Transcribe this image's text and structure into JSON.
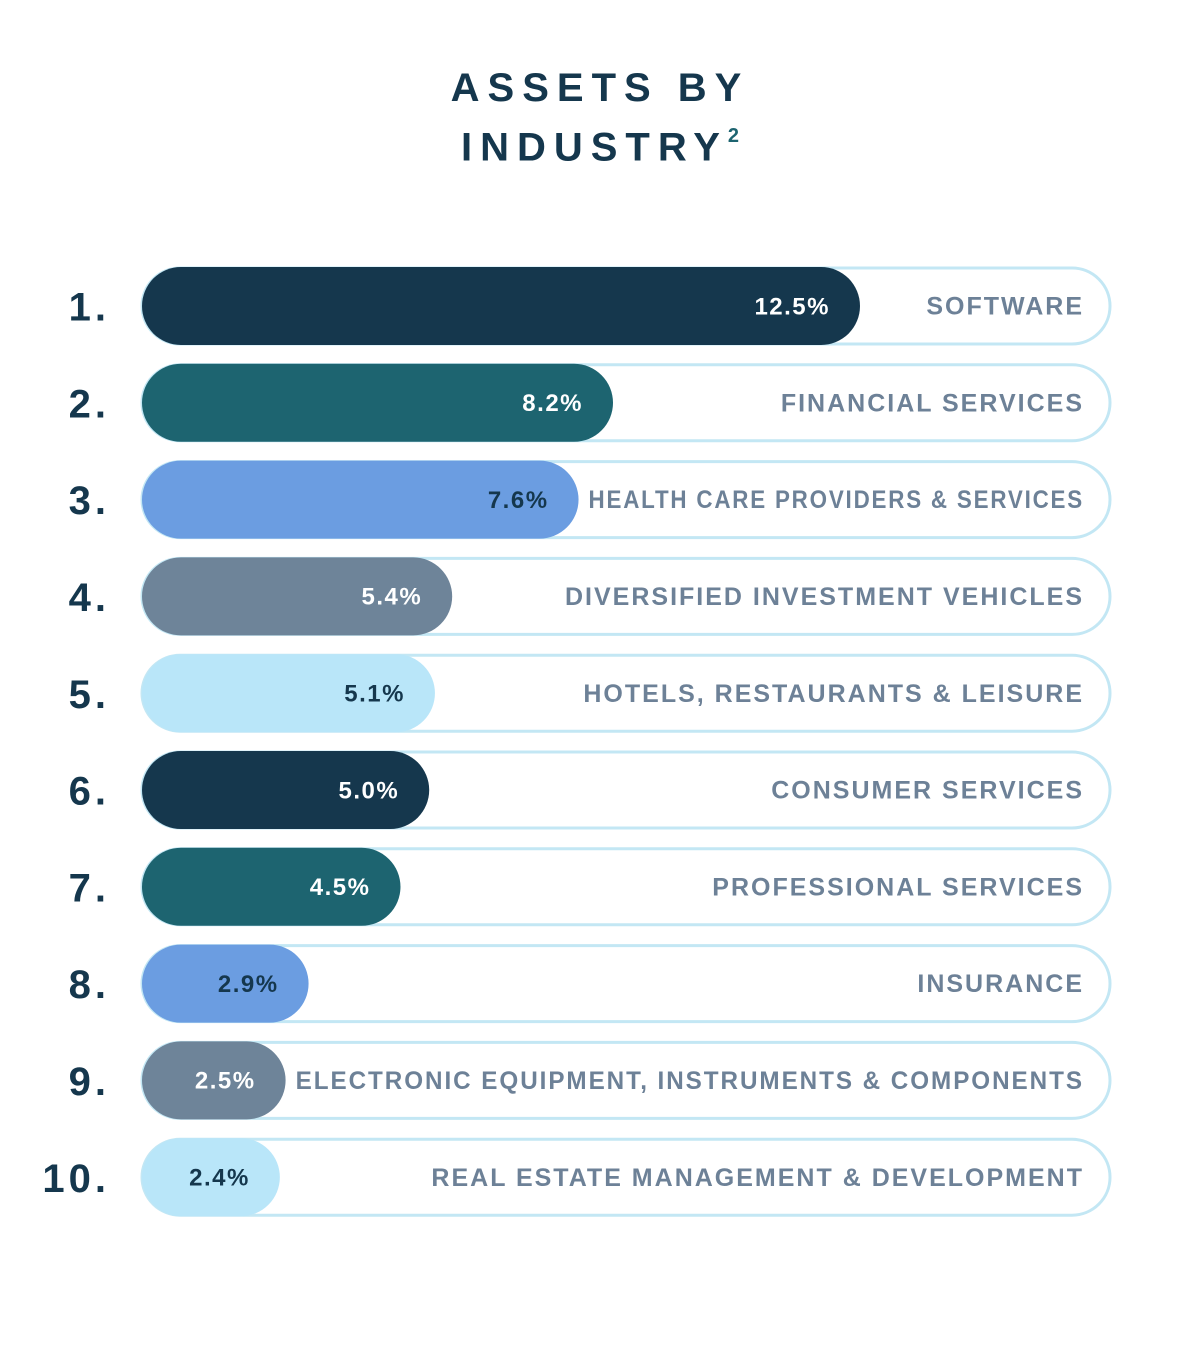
{
  "chart_data": {
    "type": "bar",
    "title": "ASSETS BY INDUSTRY",
    "title_note": "2",
    "ranks": [
      "1.",
      "2.",
      "3.",
      "4.",
      "5.",
      "6.",
      "7.",
      "8.",
      "9.",
      "10."
    ],
    "categories": [
      "SOFTWARE",
      "FINANCIAL SERVICES",
      "HEALTH CARE PROVIDERS & SERVICES",
      "DIVERSIFIED INVESTMENT VEHICLES",
      "HOTELS, RESTAURANTS & LEISURE",
      "CONSUMER SERVICES",
      "PROFESSIONAL SERVICES",
      "INSURANCE",
      "ELECTRONIC EQUIPMENT, INSTRUMENTS & COMPONENTS",
      "REAL ESTATE MANAGEMENT & DEVELOPMENT"
    ],
    "values": [
      12.5,
      8.2,
      7.6,
      5.4,
      5.1,
      5.0,
      4.5,
      2.9,
      2.5,
      2.4
    ],
    "value_labels": [
      "12.5%",
      "8.2%",
      "7.6%",
      "5.4%",
      "5.1%",
      "5.0%",
      "4.5%",
      "2.9%",
      "2.5%",
      "2.4%"
    ],
    "colors": [
      "#15374d",
      "#1d6470",
      "#6b9de1",
      "#6e8499",
      "#b9e6f9",
      "#15374d",
      "#1d6470",
      "#6b9de1",
      "#6e8499",
      "#b9e6f9"
    ],
    "label_colors": [
      "#ffffff",
      "#ffffff",
      "#15374d",
      "#ffffff",
      "#15374d",
      "#ffffff",
      "#ffffff",
      "#15374d",
      "#ffffff",
      "#15374d"
    ],
    "track_color": "#c3e7f4",
    "category_color": "#6d8197"
  }
}
